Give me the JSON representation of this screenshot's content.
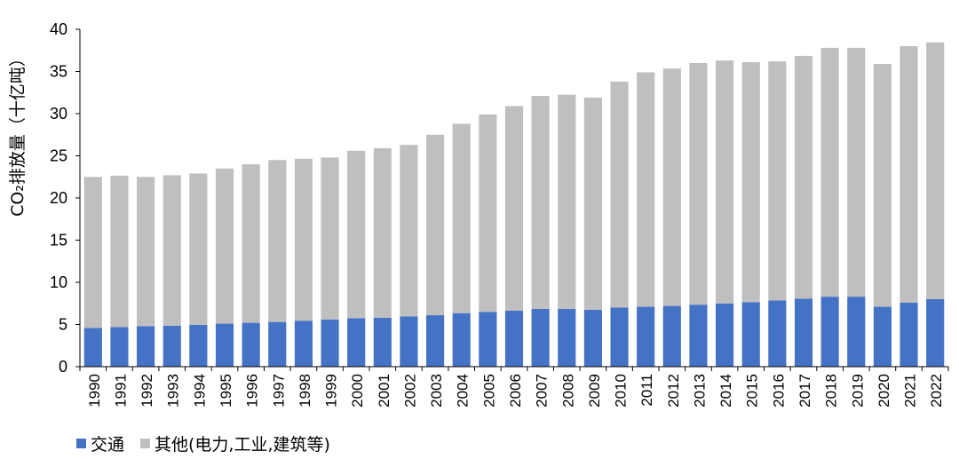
{
  "chart_data": {
    "type": "bar",
    "stacked": true,
    "ylabel": "CO₂排放量（十亿吨）",
    "xlabel": "",
    "ylim": [
      0,
      40
    ],
    "yticks": [
      0,
      5,
      10,
      15,
      20,
      25,
      30,
      35,
      40
    ],
    "grid": false,
    "legend_position": "bottom-left",
    "categories": [
      "1990",
      "1991",
      "1992",
      "1993",
      "1994",
      "1995",
      "1996",
      "1997",
      "1998",
      "1999",
      "2000",
      "2001",
      "2002",
      "2003",
      "2004",
      "2005",
      "2006",
      "2007",
      "2008",
      "2009",
      "2010",
      "2011",
      "2012",
      "2013",
      "2014",
      "2015",
      "2016",
      "2017",
      "2018",
      "2019",
      "2020",
      "2021",
      "2022"
    ],
    "series": [
      {
        "name": "交通",
        "color": "#4472C4",
        "values": [
          4.6,
          4.7,
          4.8,
          4.85,
          4.95,
          5.1,
          5.2,
          5.3,
          5.45,
          5.6,
          5.75,
          5.8,
          5.95,
          6.1,
          6.35,
          6.5,
          6.65,
          6.85,
          6.85,
          6.75,
          7.0,
          7.1,
          7.2,
          7.35,
          7.5,
          7.65,
          7.85,
          8.05,
          8.3,
          8.3,
          7.1,
          7.6,
          8.0
        ]
      },
      {
        "name": "其他(电力,工业,建筑等)",
        "color": "#BFBFBF",
        "values": [
          17.9,
          17.95,
          17.7,
          17.85,
          17.95,
          18.4,
          18.8,
          19.2,
          19.2,
          19.2,
          19.85,
          20.1,
          20.35,
          21.4,
          22.45,
          23.4,
          24.25,
          25.25,
          25.4,
          25.15,
          26.8,
          27.8,
          28.15,
          28.65,
          28.8,
          28.45,
          28.35,
          28.8,
          29.5,
          29.5,
          28.8,
          30.4,
          30.45
        ]
      }
    ]
  }
}
